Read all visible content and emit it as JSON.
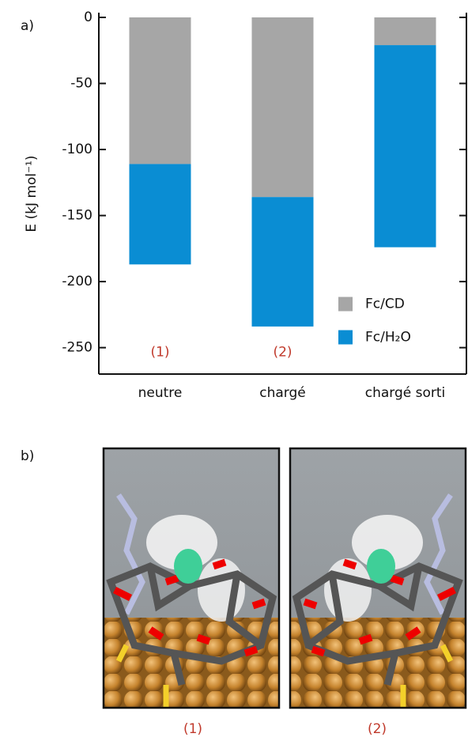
{
  "panel_labels": [
    "a)",
    "b)"
  ],
  "chart_data": {
    "type": "bar",
    "stacked": true,
    "ylabel": "E (kJ mol⁻¹)",
    "categories": [
      "neutre",
      "chargé",
      "chargé sorti"
    ],
    "series": [
      {
        "name": "Fc/CD",
        "color": "#a6a6a6",
        "values": [
          -111,
          -136,
          -21
        ]
      },
      {
        "name": "Fc/H₂O",
        "color": "#0a8dd3",
        "values": [
          -76,
          -98,
          -153
        ]
      }
    ],
    "bar_annotations": [
      "(1)",
      "(2)",
      null
    ],
    "ylim": [
      -270,
      0
    ],
    "yticks": [
      0,
      -50,
      -100,
      -150,
      -200,
      -250
    ],
    "legend": "lower right"
  },
  "panel_b": {
    "captions": [
      "(1)",
      "(2)"
    ]
  }
}
